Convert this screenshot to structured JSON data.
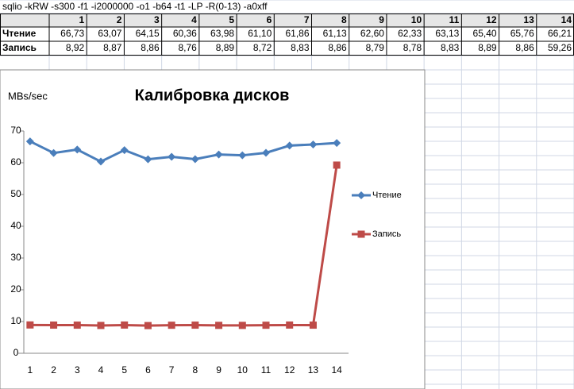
{
  "header": {
    "command": "sqlio -kRW -s300 -f1 -i2000000 -o1 -b64 -t1 -LP -R(0-13) -a0xff"
  },
  "chart_data": {
    "type": "line",
    "title": "Калибровка дисков",
    "y_label": "MBs/sec",
    "categories": [
      "1",
      "2",
      "3",
      "4",
      "5",
      "6",
      "7",
      "8",
      "9",
      "10",
      "11",
      "12",
      "13",
      "14"
    ],
    "series": [
      {
        "name": "Чтение",
        "color": "#4a7ebb",
        "marker": "diamond",
        "values": [
          66.73,
          63.07,
          64.15,
          60.36,
          63.98,
          61.1,
          61.86,
          61.13,
          62.6,
          62.33,
          63.13,
          65.4,
          65.76,
          66.21
        ],
        "value_labels": [
          "66,73",
          "63,07",
          "64,15",
          "60,36",
          "63,98",
          "61,10",
          "61,86",
          "61,13",
          "62,60",
          "62,33",
          "63,13",
          "65,40",
          "65,76",
          "66,21"
        ]
      },
      {
        "name": "Запись",
        "color": "#be4b48",
        "marker": "square",
        "values": [
          8.92,
          8.87,
          8.86,
          8.76,
          8.89,
          8.72,
          8.83,
          8.86,
          8.79,
          8.78,
          8.83,
          8.89,
          8.86,
          59.26
        ],
        "value_labels": [
          "8,92",
          "8,87",
          "8,86",
          "8,76",
          "8,89",
          "8,72",
          "8,83",
          "8,86",
          "8,79",
          "8,78",
          "8,83",
          "8,89",
          "8,86",
          "59,26"
        ]
      }
    ],
    "ylim": [
      0,
      70
    ],
    "yticks": [
      0,
      10,
      20,
      30,
      40,
      50,
      60,
      70
    ],
    "grid": false,
    "legend": "right"
  }
}
